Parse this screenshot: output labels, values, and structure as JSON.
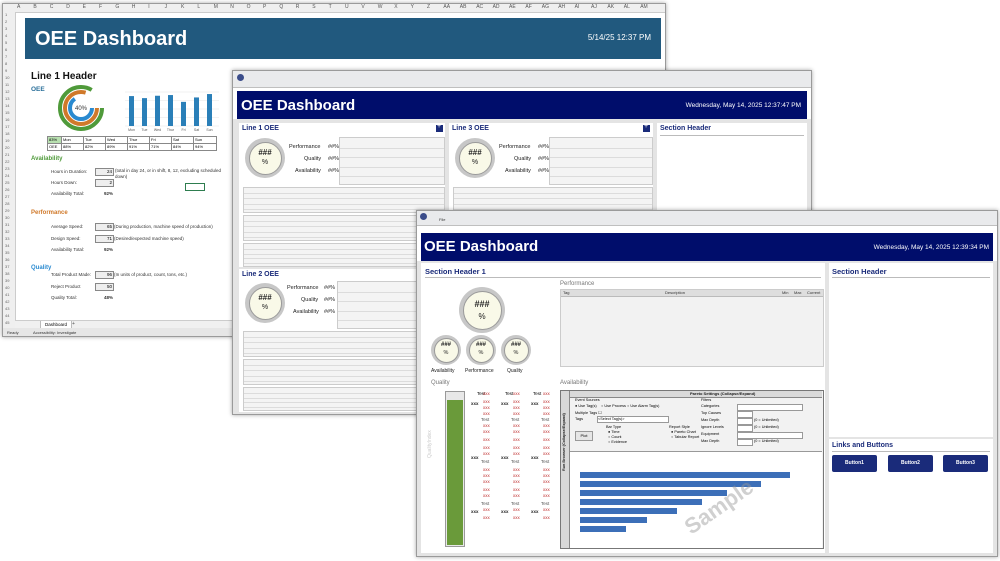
{
  "excel": {
    "columns": [
      "A",
      "B",
      "C",
      "D",
      "E",
      "F",
      "G",
      "H",
      "I",
      "J",
      "K",
      "L",
      "M",
      "N",
      "O",
      "P",
      "Q",
      "R",
      "S",
      "T",
      "U",
      "V",
      "W",
      "X",
      "Y",
      "Z",
      "AA",
      "AB",
      "AC",
      "AD",
      "AE",
      "AF",
      "AG",
      "AH",
      "AI",
      "AJ",
      "AK",
      "AL",
      "AM"
    ],
    "banner_title": "OEE Dashboard",
    "banner_date": "5/14/25 12:37 PM",
    "line_header": "Line 1 Header",
    "oee_label": "OEE",
    "donut_center": "40%",
    "oee_table": {
      "days": [
        "Mon",
        "Tue",
        "Wed",
        "Thur",
        "Fri",
        "Sat",
        "Sun"
      ],
      "first_cell": "83%",
      "row_label": "OEE",
      "values": [
        "88%",
        "82%",
        "89%",
        "91%",
        "71%",
        "84%",
        "94%"
      ]
    },
    "bar_days": [
      "Mon",
      "Tue",
      "Wed",
      "Thur",
      "Fri",
      "Sat",
      "Sun"
    ],
    "availability": {
      "title": "Availability",
      "hours_label": "Hours in Duration:",
      "hours_value": "24",
      "hours_note": "(total in day 24, or in shift, 8, 12, excluding scheduled down)",
      "down_label": "Hours Down:",
      "down_value": "2",
      "total_label": "Availability Total:",
      "total_value": "92%"
    },
    "performance": {
      "title": "Performance",
      "avg_label": "Average Speed:",
      "avg_value": "65",
      "avg_note": "(During production, machine speed of production)",
      "design_label": "Design Speed:",
      "design_value": "71",
      "design_note": "(Desired/expected machine speed)",
      "total_label": "Availability Total:",
      "total_value": "92%"
    },
    "quality": {
      "title": "Quality",
      "made_label": "Total Product Made:",
      "made_value": "96",
      "made_note": "(In units of product, count, tons, etc.)",
      "reject_label": "Reject Product",
      "reject_value": "50",
      "total_label": "Quality Total:",
      "total_value": "48%"
    },
    "sheet_tab": "Dashboard",
    "add_tab": "+",
    "status_ready": "Ready",
    "status_accessibility": "Accessibility: Investigate"
  },
  "window2": {
    "title": "OEE Dashboard",
    "date": "Wednesday, May 14, 2025 12:37:47 PM",
    "panels": [
      {
        "title": "Line 1 OEE"
      },
      {
        "title": "Line 3 OEE"
      },
      {
        "title": "Line 2 OEE"
      }
    ],
    "section_header": "Section Header",
    "gauge_value": "###",
    "gauge_unit": "%",
    "metrics": [
      {
        "label": "Performance",
        "value": "##%"
      },
      {
        "label": "Quality",
        "value": "##%"
      },
      {
        "label": "Availability",
        "value": "##%"
      }
    ],
    "plus_icon": "+"
  },
  "window3": {
    "menu_file": "File",
    "title": "OEE Dashboard",
    "date": "Wednesday, May 14, 2025 12:39:34 PM",
    "section_header_1": "Section Header 1",
    "section_header_right": "Section Header",
    "main_gauge": {
      "value": "###",
      "unit": "%"
    },
    "small_gauges": [
      {
        "value": "###",
        "unit": "%",
        "label": "Availability"
      },
      {
        "value": "###",
        "unit": "%",
        "label": "Performance"
      },
      {
        "value": "###",
        "unit": "%",
        "label": "Quality"
      }
    ],
    "performance_label": "Performance",
    "performance_cols": [
      "Tag",
      "Description",
      "Min",
      "Max",
      "Current"
    ],
    "quality_label": "Quality",
    "quality_axis": "QualityIndex",
    "availability_label": "Availability",
    "test_label": "Test",
    "xxx_label": "xxx",
    "pareto": {
      "title": "Pareto Settings (Collapse/Expand)",
      "side": "Run Browser (Collapse/Expand)",
      "event_sources": "Event Sources",
      "src_tags": "Use Tag(s)",
      "src_process": "Use Process",
      "src_alarm": "Use Alarm Tag(s)",
      "multiple_tags": "Multiple Tags",
      "tags_label": "Tags",
      "select_tags": "<Select Tag(s)>",
      "plot": "Plot",
      "bar_type": "Bar Type",
      "bar_opts": [
        "Time",
        "Count",
        "Evidence"
      ],
      "report_style": "Report Style",
      "report_opts": [
        "Pareto Chart",
        "Tabular Report"
      ],
      "filters": "Filters",
      "filter_rows": [
        "Categories",
        "Top Causes",
        "Max Depth",
        "Ignore Levels",
        "Equipment",
        "Max Depth"
      ],
      "unlimited": "(0 = Unlimited)",
      "watermark": "Sample"
    },
    "pareto_bars": [
      1.0,
      0.86,
      0.7,
      0.58,
      0.46,
      0.32,
      0.22
    ],
    "links_header": "Links and Buttons",
    "buttons": [
      "Button1",
      "Button2",
      "Button3"
    ]
  }
}
